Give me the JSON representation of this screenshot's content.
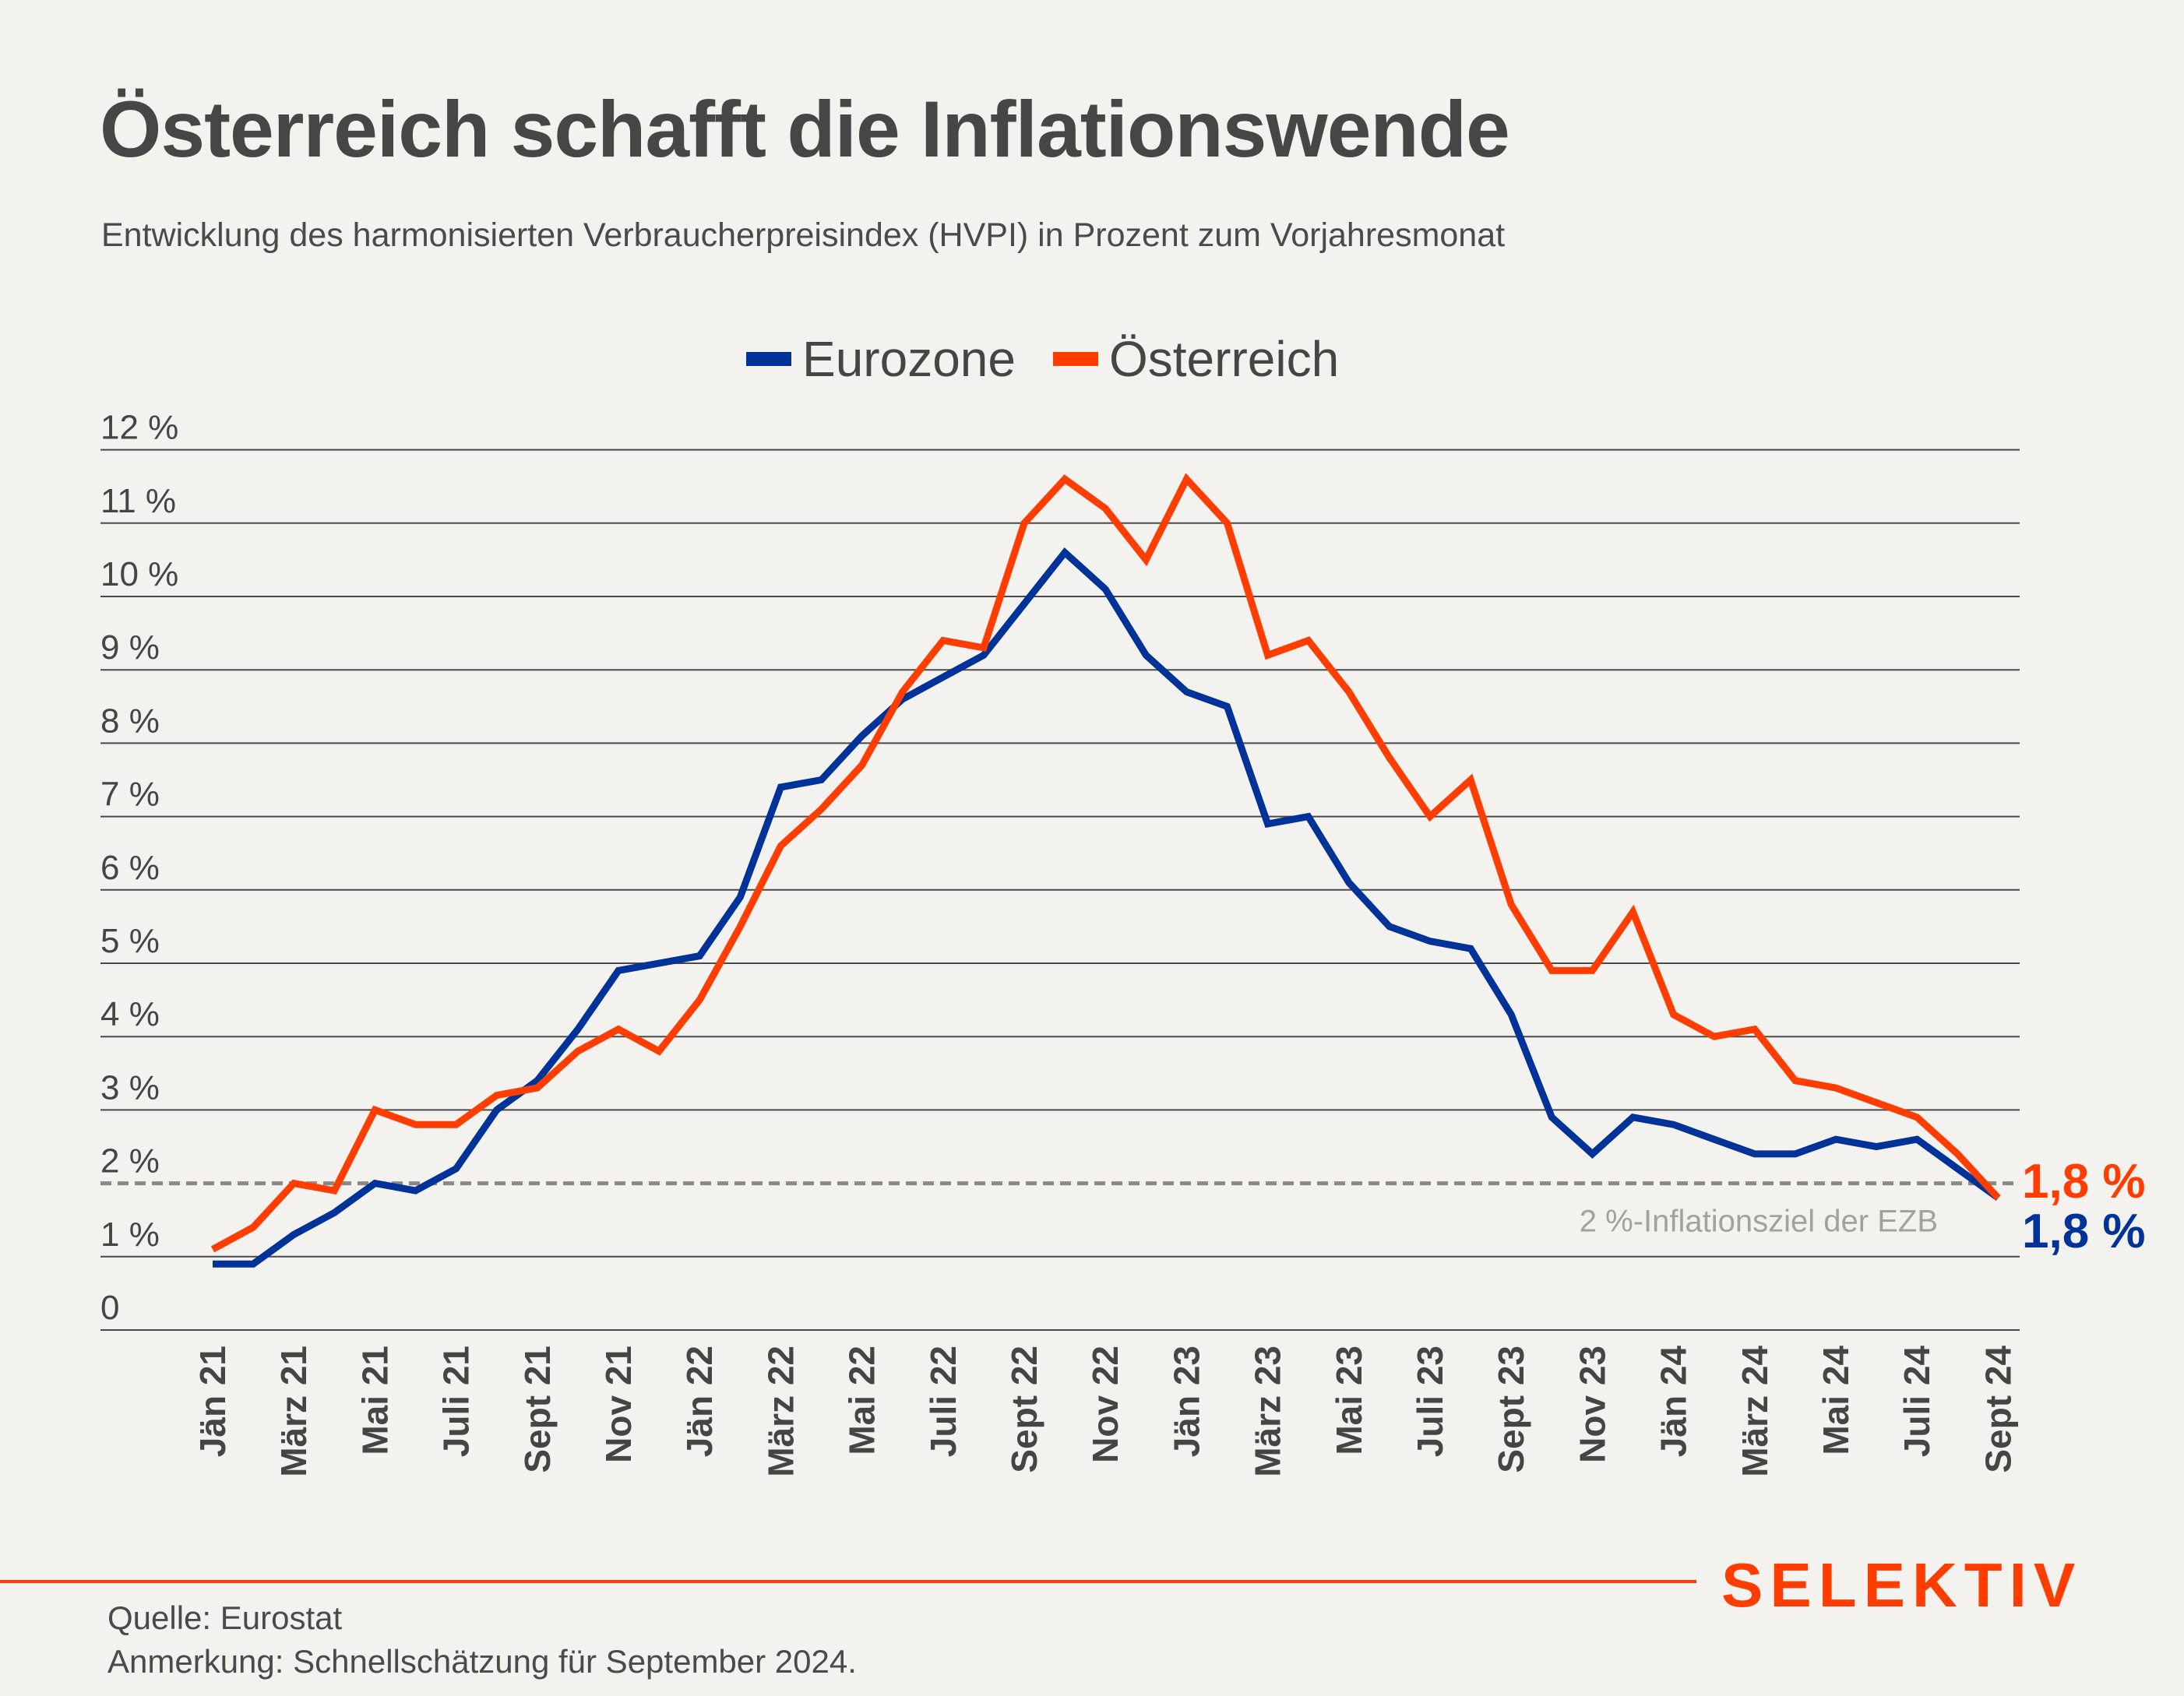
{
  "header": {
    "title": "Österreich schafft die Inflationswende",
    "subtitle": "Entwicklung des harmonisierten Verbraucherpreisindex (HVPI) in Prozent zum Vorjahresmonat"
  },
  "colors": {
    "eurozone": "#003399",
    "oesterreich": "#ff3d00",
    "gridline": "#4a4a4a",
    "target_line": "#8a8784",
    "annotation": "#a3a19e",
    "background": "#f3f2ef"
  },
  "chart_data": {
    "type": "line",
    "title": "Österreich schafft die Inflationswende",
    "subtitle": "Entwicklung des harmonisierten Verbraucherpreisindex (HVPI) in Prozent zum Vorjahresmonat",
    "xlabel": "",
    "ylabel": "",
    "ylim": [
      0,
      12
    ],
    "y_ticks": [
      0,
      1,
      2,
      3,
      4,
      5,
      6,
      7,
      8,
      9,
      10,
      11,
      12
    ],
    "y_tick_labels": [
      "0",
      "1 %",
      "2 %",
      "3 %",
      "4 %",
      "5 %",
      "6 %",
      "7 %",
      "8 %",
      "9 %",
      "10 %",
      "11 %",
      "12 %"
    ],
    "grid": true,
    "legend_position": "top-center",
    "x": [
      "Jän 21",
      "Feb 21",
      "März 21",
      "Apr 21",
      "Mai 21",
      "Juni 21",
      "Juli 21",
      "Aug 21",
      "Sept 21",
      "Okt 21",
      "Nov 21",
      "Dez 21",
      "Jän 22",
      "Feb 22",
      "März 22",
      "Apr 22",
      "Mai 22",
      "Juni 22",
      "Juli 22",
      "Aug 22",
      "Sept 22",
      "Okt 22",
      "Nov 22",
      "Dez 22",
      "Jän 23",
      "Feb 23",
      "März 23",
      "Apr 23",
      "Mai 23",
      "Juni 23",
      "Juli 23",
      "Aug 23",
      "Sept 23",
      "Okt 23",
      "Nov 23",
      "Dez 23",
      "Jän 24",
      "Feb 24",
      "März 24",
      "Apr 24",
      "Mai 24",
      "Juni 24",
      "Juli 24",
      "Aug 24",
      "Sept 24"
    ],
    "x_tick_labels": [
      "Jän 21",
      "März 21",
      "Mai 21",
      "Juli 21",
      "Sept 21",
      "Nov 21",
      "Jän 22",
      "März 22",
      "Mai 22",
      "Juli 22",
      "Sept 22",
      "Nov 22",
      "Jän 23",
      "März 23",
      "Mai 23",
      "Juli 23",
      "Sept 23",
      "Nov 23",
      "Jän 24",
      "März 24",
      "Mai 24",
      "Juli 24",
      "Sept 24"
    ],
    "series": [
      {
        "name": "Eurozone",
        "color": "#003399",
        "values": [
          0.9,
          0.9,
          1.3,
          1.6,
          2.0,
          1.9,
          2.2,
          3.0,
          3.4,
          4.1,
          4.9,
          5.0,
          5.1,
          5.9,
          7.4,
          7.5,
          8.1,
          8.6,
          8.9,
          9.2,
          9.9,
          10.6,
          10.1,
          9.2,
          8.7,
          8.5,
          6.9,
          7.0,
          6.1,
          5.5,
          5.3,
          5.2,
          4.3,
          2.9,
          2.4,
          2.9,
          2.8,
          2.6,
          2.4,
          2.4,
          2.6,
          2.5,
          2.6,
          2.2,
          1.8
        ],
        "end_label": "1,8 %"
      },
      {
        "name": "Österreich",
        "color": "#ff3d00",
        "values": [
          1.1,
          1.4,
          2.0,
          1.9,
          3.0,
          2.8,
          2.8,
          3.2,
          3.3,
          3.8,
          4.1,
          3.8,
          4.5,
          5.5,
          6.6,
          7.1,
          7.7,
          8.7,
          9.4,
          9.3,
          11.0,
          11.6,
          11.2,
          10.5,
          11.6,
          11.0,
          9.2,
          9.4,
          8.7,
          7.8,
          7.0,
          7.5,
          5.8,
          4.9,
          4.9,
          5.7,
          4.3,
          4.0,
          4.1,
          3.4,
          3.3,
          3.1,
          2.9,
          2.4,
          1.8
        ],
        "end_label": "1,8 %"
      }
    ],
    "reference_line": {
      "value": 2,
      "label": "2 %-Inflationsziel der EZB",
      "style": "dashed"
    }
  },
  "legend": {
    "items": [
      {
        "label": "Eurozone",
        "color": "#003399"
      },
      {
        "label": "Österreich",
        "color": "#ff3d00"
      }
    ]
  },
  "footer": {
    "source": "Quelle: Eurostat",
    "note": "Anmerkung: Schnellschätzung für September 2024.",
    "logo": "SELEKTIV"
  }
}
